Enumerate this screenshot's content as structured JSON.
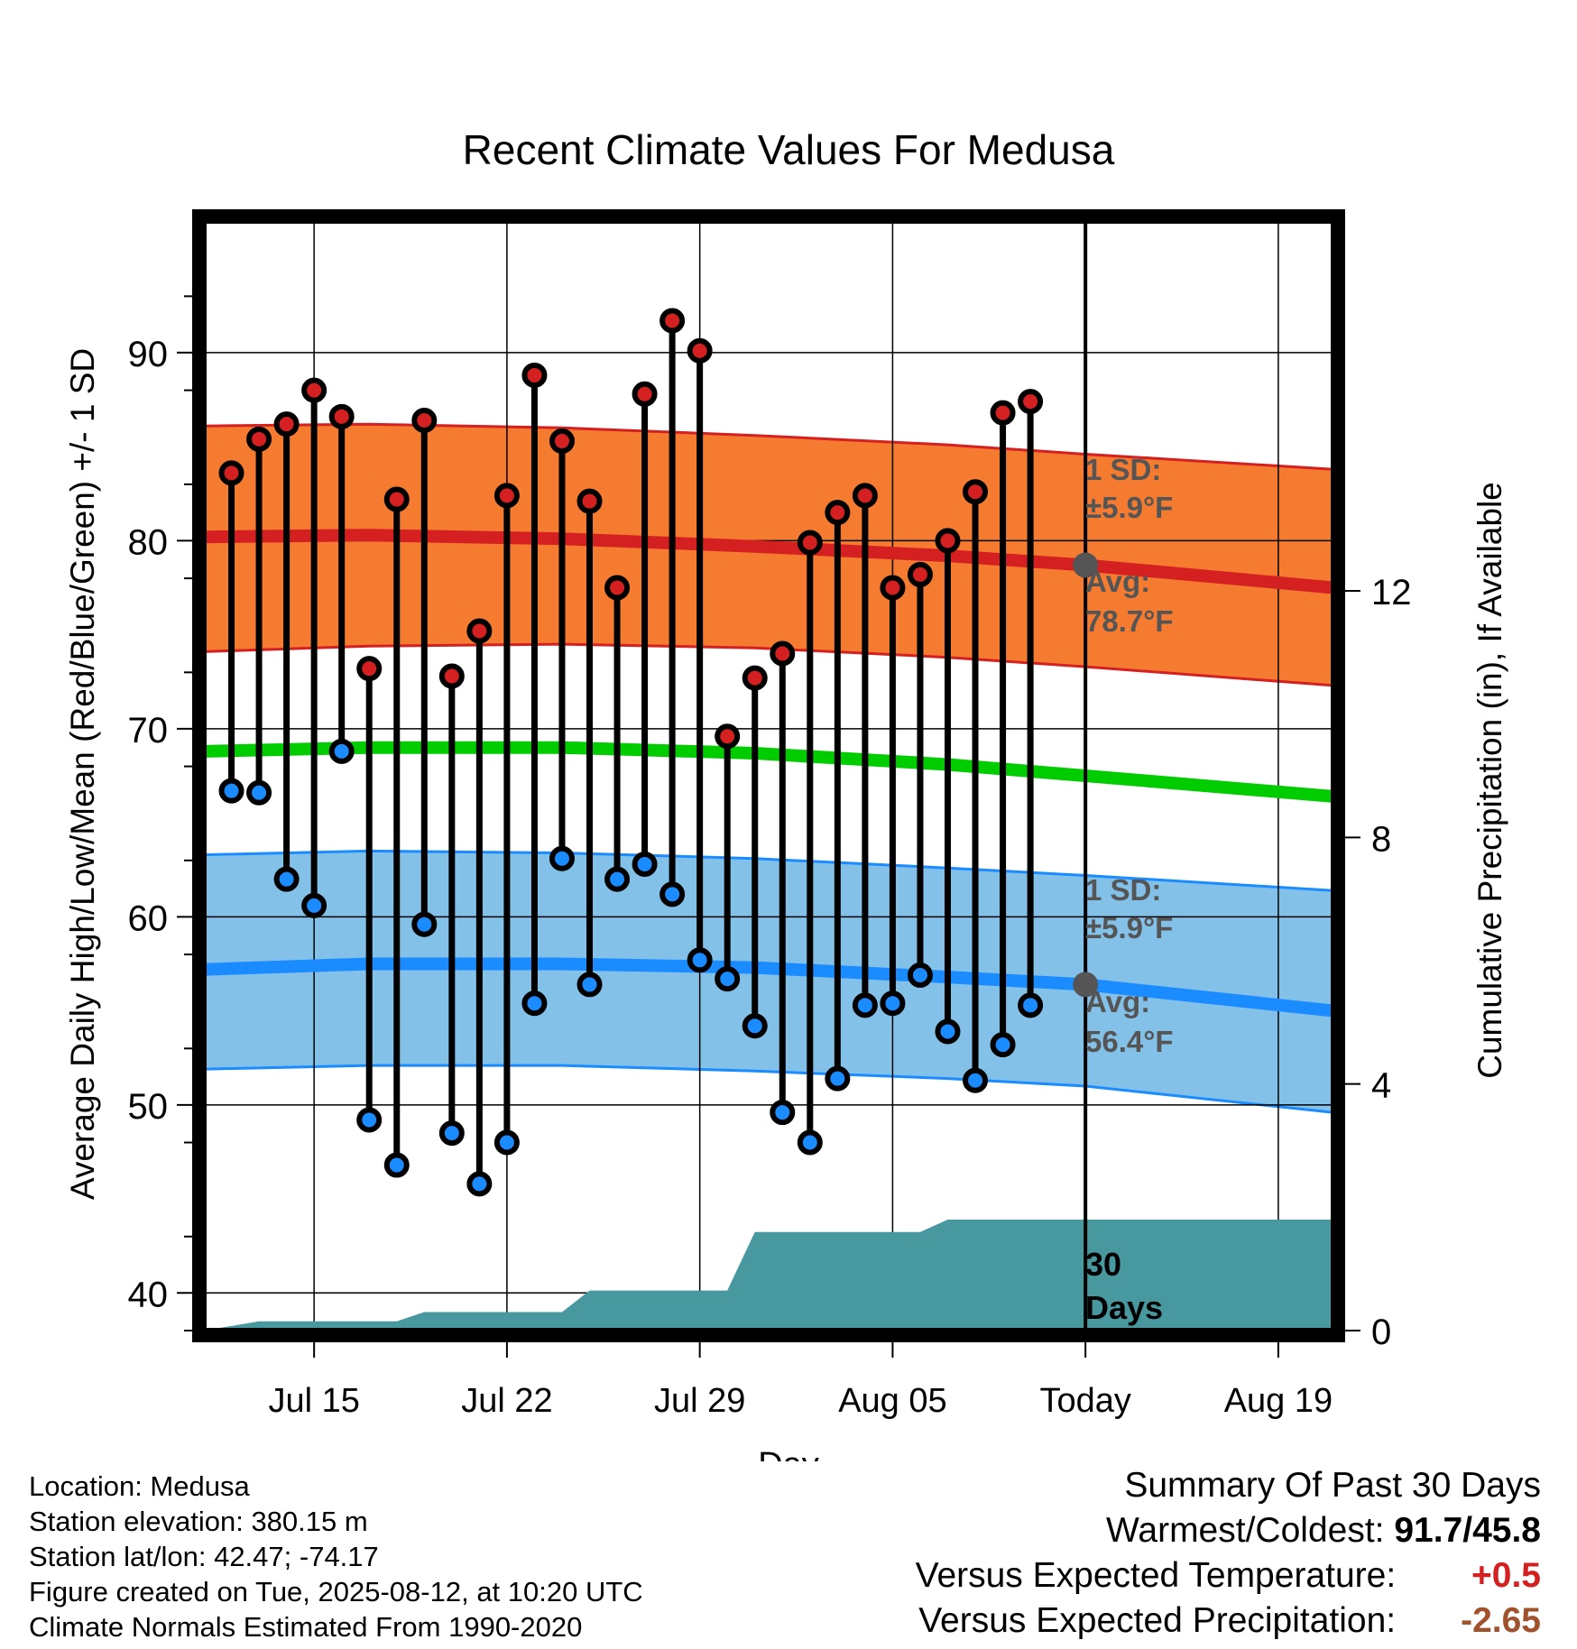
{
  "chart_data": {
    "type": "line",
    "title": "Recent Climate Values For Medusa",
    "xlabel": "Day",
    "ylabel": "Average Daily High/Low/Mean (Red/Blue/Green) +/- 1 SD",
    "y2label": "Cumulative Precipitation (in), If Available",
    "x_tick_labels": [
      "Jul 15",
      "Jul 22",
      "Jul 29",
      "Aug 05",
      "Today",
      "Aug 19"
    ],
    "x_tick_dates": [
      "2025-07-15",
      "2025-07-22",
      "2025-07-29",
      "2025-08-05",
      "2025-08-12",
      "2025-08-19"
    ],
    "xlim": [
      "2025-07-11",
      "2025-08-21"
    ],
    "today": "2025-08-12",
    "ylim": [
      38,
      97
    ],
    "y_ticks": [
      40,
      50,
      60,
      70,
      80,
      90
    ],
    "y2lim": [
      0,
      18
    ],
    "y2_ticks": [
      0,
      4,
      8,
      12
    ],
    "normals": {
      "dates": [
        "2025-07-11",
        "2025-07-17",
        "2025-07-24",
        "2025-07-31",
        "2025-08-07",
        "2025-08-12",
        "2025-08-21"
      ],
      "high_mean": [
        80.2,
        80.3,
        80.1,
        79.7,
        79.2,
        78.7,
        77.5
      ],
      "high_upper": [
        86.1,
        86.2,
        86.0,
        85.6,
        85.1,
        84.6,
        83.8
      ],
      "high_lower": [
        74.1,
        74.4,
        74.5,
        74.3,
        73.8,
        73.3,
        72.3
      ],
      "mean": [
        68.8,
        69.0,
        69.0,
        68.7,
        68.1,
        67.5,
        66.4
      ],
      "low_mean": [
        57.2,
        57.5,
        57.5,
        57.3,
        56.8,
        56.4,
        55.0
      ],
      "low_upper": [
        63.3,
        63.5,
        63.4,
        63.1,
        62.6,
        62.2,
        61.4
      ],
      "low_lower": [
        51.9,
        52.1,
        52.1,
        51.8,
        51.4,
        51.0,
        49.6
      ]
    },
    "observed": {
      "dates": [
        "2025-07-12",
        "2025-07-13",
        "2025-07-14",
        "2025-07-15",
        "2025-07-16",
        "2025-07-17",
        "2025-07-18",
        "2025-07-19",
        "2025-07-20",
        "2025-07-21",
        "2025-07-22",
        "2025-07-23",
        "2025-07-24",
        "2025-07-25",
        "2025-07-26",
        "2025-07-27",
        "2025-07-28",
        "2025-07-29",
        "2025-07-30",
        "2025-07-31",
        "2025-08-01",
        "2025-08-02",
        "2025-08-03",
        "2025-08-04",
        "2025-08-05",
        "2025-08-06",
        "2025-08-07",
        "2025-08-08",
        "2025-08-09",
        "2025-08-10",
        "2025-08-11"
      ],
      "high": [
        83.6,
        85.4,
        86.2,
        88.0,
        86.6,
        73.2,
        82.2,
        86.4,
        72.8,
        75.2,
        82.4,
        88.8,
        85.3,
        82.1,
        77.5,
        87.8,
        91.7,
        90.1,
        69.6,
        72.7,
        74.0,
        79.9,
        81.5,
        82.4,
        77.5,
        78.2,
        80.0,
        82.6,
        86.8,
        87.4,
        null
      ],
      "low": [
        66.7,
        66.6,
        62.0,
        60.6,
        68.8,
        49.2,
        46.8,
        59.6,
        48.5,
        45.8,
        48.0,
        55.4,
        63.1,
        56.4,
        62.0,
        62.8,
        61.2,
        57.7,
        56.7,
        54.2,
        49.6,
        48.0,
        51.4,
        55.3,
        55.4,
        56.9,
        53.9,
        51.3,
        53.2,
        55.3,
        null
      ]
    },
    "precip": {
      "dates": [
        "2025-07-11",
        "2025-07-13",
        "2025-07-18",
        "2025-07-19",
        "2025-07-24",
        "2025-07-25",
        "2025-07-30",
        "2025-07-31",
        "2025-08-06",
        "2025-08-07",
        "2025-08-21"
      ],
      "cumulative": [
        0.0,
        0.15,
        0.15,
        0.3,
        0.3,
        0.65,
        0.65,
        1.6,
        1.6,
        1.8,
        1.8
      ]
    },
    "annotations": {
      "high_sd": "1 SD:",
      "high_sd_value": "±5.9°F",
      "high_avg": "Avg:",
      "high_avg_value": "78.7°F",
      "low_sd": "1 SD:",
      "low_sd_value": "±5.9°F",
      "low_avg": "Avg:",
      "low_avg_value": "56.4°F",
      "period_line1": "30",
      "period_line2": "Days"
    },
    "colors": {
      "high_band": "#f47b30",
      "high_line": "#d42020",
      "low_band": "#84c1e8",
      "low_line": "#1a8cff",
      "mean_line": "#00cc00",
      "precip": "#4898a0",
      "high_marker": "#d42020",
      "low_marker": "#1a8cff",
      "annotation": "#555555"
    }
  },
  "footer": {
    "location": "Location: Medusa",
    "elevation": "Station elevation: 380.15 m",
    "latlon": "Station lat/lon: 42.47; -74.17",
    "created": "Figure created on Tue, 2025-08-12, at 10:20 UTC",
    "normals": "Climate Normals Estimated From 1990-2020"
  },
  "summary": {
    "title": "Summary Of Past 30 Days",
    "warm_cold_label": "Warmest/Coldest:",
    "warm_cold_value": "91.7/45.8",
    "temp_label": "Versus Expected Temperature:",
    "temp_value": "+0.5",
    "temp_color": "#d42020",
    "precip_label": "Versus Expected Precipitation:",
    "precip_value": "-2.65",
    "precip_color": "#a0522d"
  }
}
